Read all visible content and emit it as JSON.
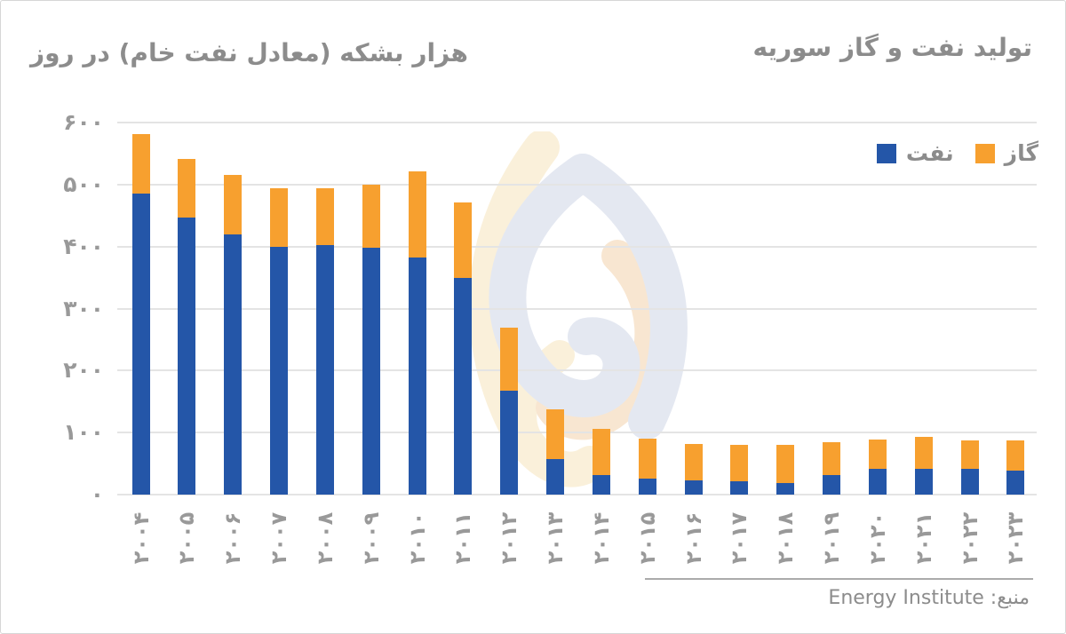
{
  "header": {
    "title": "تولید نفت و گاز سوریه",
    "unit_label": "هزار بشکه (معادل نفت خام) در روز"
  },
  "legend": [
    {
      "label": "گاز",
      "color": "#F7A02F"
    },
    {
      "label": "نفت",
      "color": "#2456A8"
    }
  ],
  "source": {
    "text": "منبع: Energy Institute",
    "name": "Energy Institute"
  },
  "chart_data": {
    "type": "bar",
    "stacked": true,
    "title": "تولید نفت و گاز سوریه",
    "ylabel": "هزار بشکه (معادل نفت خام) در روز",
    "xlabel": "",
    "categories": [
      2004,
      2005,
      2006,
      2007,
      2008,
      2009,
      2010,
      2011,
      2012,
      2013,
      2014,
      2015,
      2016,
      2017,
      2018,
      2019,
      2020,
      2021,
      2022,
      2023
    ],
    "categories_display": [
      "۲۰۰۴",
      "۲۰۰۵",
      "۲۰۰۶",
      "۲۰۰۷",
      "۲۰۰۸",
      "۲۰۰۹",
      "۲۰۱۰",
      "۲۰۱۱",
      "۲۰۱۲",
      "۲۰۱۳",
      "۲۰۱۴",
      "۲۰۱۵",
      "۲۰۱۶",
      "۲۰۱۷",
      "۲۰۱۸",
      "۲۰۱۹",
      "۲۰۲۰",
      "۲۰۲۱",
      "۲۰۲۲",
      "۲۰۲۳"
    ],
    "series": [
      {
        "name": "نفت",
        "key": "oil",
        "color": "#2456A8",
        "values": [
          485,
          447,
          419,
          400,
          403,
          398,
          382,
          349,
          168,
          57,
          32,
          26,
          23,
          22,
          19,
          32,
          42,
          42,
          41,
          39
        ]
      },
      {
        "name": "گاز",
        "key": "gas",
        "color": "#F7A02F",
        "values": [
          97,
          94,
          96,
          94,
          91,
          102,
          139,
          122,
          101,
          81,
          74,
          64,
          58,
          58,
          61,
          52,
          47,
          51,
          47,
          48
        ]
      }
    ],
    "ylim": [
      0,
      600
    ],
    "yticks": [
      600,
      500,
      400,
      300,
      200,
      100,
      0
    ],
    "ytick_labels_display": [
      "۶۰۰",
      "۵۰۰",
      "۴۰۰",
      "۳۰۰",
      "۲۰۰",
      "۱۰۰",
      "۰"
    ],
    "grid": true,
    "legend_position": "top-right"
  }
}
